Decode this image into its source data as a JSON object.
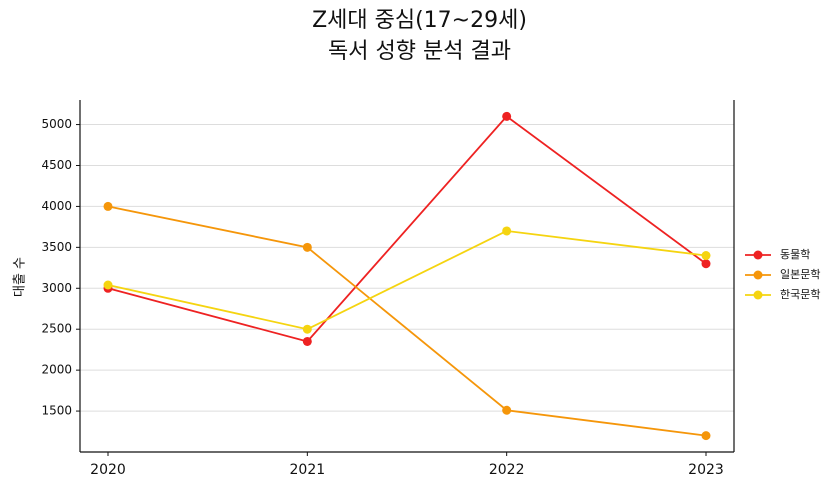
{
  "chart_data": {
    "type": "line",
    "title_line1": "Z세대 중심(17~29세)",
    "title_line2": "독서 성향 분석 결과",
    "xlabel": "",
    "ylabel": "대출 수",
    "categories": [
      "2020",
      "2021",
      "2022",
      "2023"
    ],
    "ylim": [
      1000,
      5300
    ],
    "yticks": [
      1500,
      2000,
      2500,
      3000,
      3500,
      4000,
      4500,
      5000
    ],
    "grid": "horizontal",
    "legend_position": "right",
    "series": [
      {
        "name": "동물학",
        "color": "#ee2222",
        "values": [
          3000,
          2350,
          5100,
          3300
        ]
      },
      {
        "name": "일본문학",
        "color": "#f5960a",
        "values": [
          4000,
          3500,
          1510,
          1200
        ]
      },
      {
        "name": "한국문학",
        "color": "#f5d410",
        "values": [
          3040,
          2500,
          3700,
          3400
        ]
      }
    ]
  }
}
